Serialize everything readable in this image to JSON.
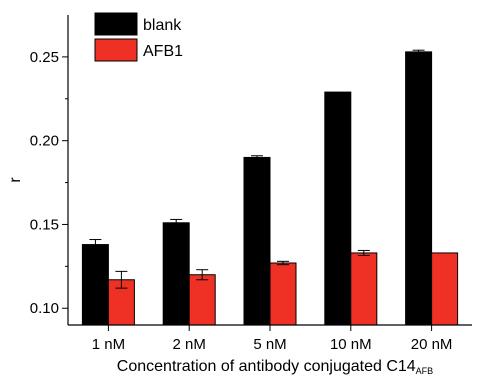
{
  "chart_data": {
    "type": "bar",
    "categories": [
      "1 nM",
      "2 nM",
      "5 nM",
      "10 nM",
      "20 nM"
    ],
    "series": [
      {
        "name": "blank",
        "color": "#000000",
        "values": [
          0.138,
          0.151,
          0.19,
          0.229,
          0.253
        ],
        "errors": [
          0.003,
          0.002,
          0.001,
          0.0,
          0.001
        ]
      },
      {
        "name": "AFB1",
        "color": "#ee3124",
        "values": [
          0.117,
          0.12,
          0.127,
          0.133,
          0.133
        ],
        "errors": [
          0.005,
          0.003,
          0.001,
          0.0015,
          0.0
        ]
      }
    ],
    "xlabel": "Concentration of antibody conjugated C14",
    "xlabel_subscript": "AFB",
    "ylabel": "r",
    "ylim": [
      0.09,
      0.275
    ],
    "yticks": [
      "0.10",
      "0.15",
      "0.20",
      "0.25"
    ],
    "ytick_values": [
      0.1,
      0.15,
      0.2,
      0.25
    ],
    "legend_position": "top-left",
    "grid": false
  }
}
